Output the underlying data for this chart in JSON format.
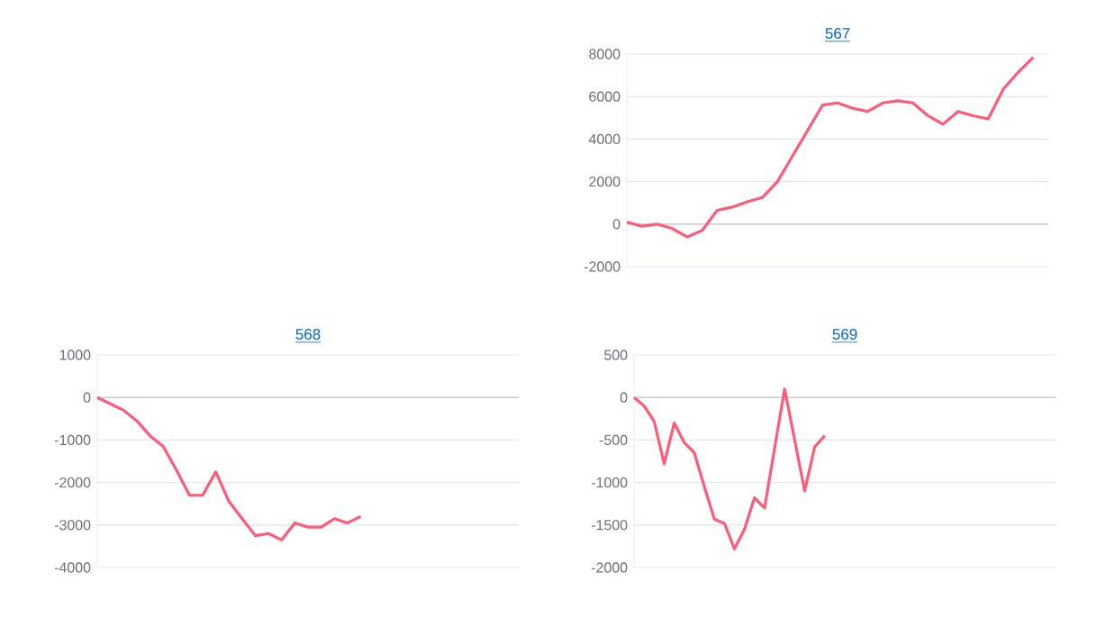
{
  "chart_data": [
    {
      "type": "line",
      "title": "567",
      "categories": [
        null,
        null,
        null,
        null,
        null,
        null,
        null,
        null,
        null,
        null,
        null,
        null,
        null,
        null,
        null,
        null,
        null,
        null,
        null,
        null,
        null,
        null,
        null,
        null,
        null,
        null,
        null,
        null,
        null
      ],
      "series": [
        {
          "color": "#ff5a78",
          "values": [
            100,
            -100,
            0,
            -200,
            -600,
            -300,
            650,
            800,
            1050,
            1250,
            2000,
            3200,
            4400,
            5600,
            5700,
            5450,
            5300,
            5700,
            5800,
            5700,
            5100,
            4700,
            5300,
            5100,
            4950,
            6350,
            7150,
            7850,
            null
          ]
        }
      ],
      "ylim": [
        -2000,
        8000
      ],
      "yticks": [
        -2000,
        0,
        2000,
        4000,
        6000,
        8000
      ],
      "grid": "y",
      "marker": "none",
      "tick_labels": "y"
    },
    {
      "type": "line",
      "title": "568",
      "categories": [
        null,
        null,
        null,
        null,
        null,
        null,
        null,
        null,
        null,
        null,
        null,
        null,
        null,
        null,
        null,
        null,
        null,
        null,
        null,
        null,
        null,
        null,
        null,
        null,
        null,
        null,
        null,
        null,
        null,
        null,
        null,
        null,
        null
      ],
      "series": [
        {
          "color": "#ff5a78",
          "values": [
            0,
            -150,
            -300,
            -550,
            -900,
            -1150,
            -1700,
            -2300,
            -2300,
            -1750,
            -2450,
            -2850,
            -3250,
            -3200,
            -3350,
            -2950,
            -3050,
            -3050,
            -2850,
            -2950,
            -2800,
            null,
            null,
            null,
            null,
            null,
            null,
            null,
            null,
            null,
            null,
            null,
            null
          ]
        }
      ],
      "ylim": [
        -4000,
        1000
      ],
      "yticks": [
        -4000,
        -3000,
        -2000,
        -1000,
        0,
        1000
      ],
      "grid": "y",
      "marker": "none",
      "tick_labels": "y"
    },
    {
      "type": "line",
      "title": "569",
      "categories": [
        null,
        null,
        null,
        null,
        null,
        null,
        null,
        null,
        null,
        null,
        null,
        null,
        null,
        null,
        null,
        null,
        null,
        null,
        null,
        null,
        null,
        null,
        null,
        null,
        null,
        null,
        null,
        null,
        null,
        null,
        null,
        null,
        null,
        null,
        null,
        null,
        null,
        null,
        null,
        null,
        null,
        null,
        null
      ],
      "series": [
        {
          "color": "#ff5a78",
          "values": [
            0,
            -100,
            -280,
            -780,
            -300,
            -530,
            -650,
            -1050,
            -1430,
            -1480,
            -1780,
            -1550,
            -1180,
            -1300,
            -600,
            100,
            -500,
            -1100,
            -580,
            -450,
            null,
            null,
            null,
            null,
            null,
            null,
            null,
            null,
            null,
            null,
            null,
            null,
            null,
            null,
            null,
            null,
            null,
            null,
            null,
            null,
            null,
            null,
            null
          ]
        }
      ],
      "ylim": [
        -2000,
        500
      ],
      "yticks": [
        -2000,
        -1500,
        -1000,
        -500,
        0,
        500
      ],
      "grid": "y",
      "marker": "none",
      "tick_labels": "y"
    }
  ]
}
